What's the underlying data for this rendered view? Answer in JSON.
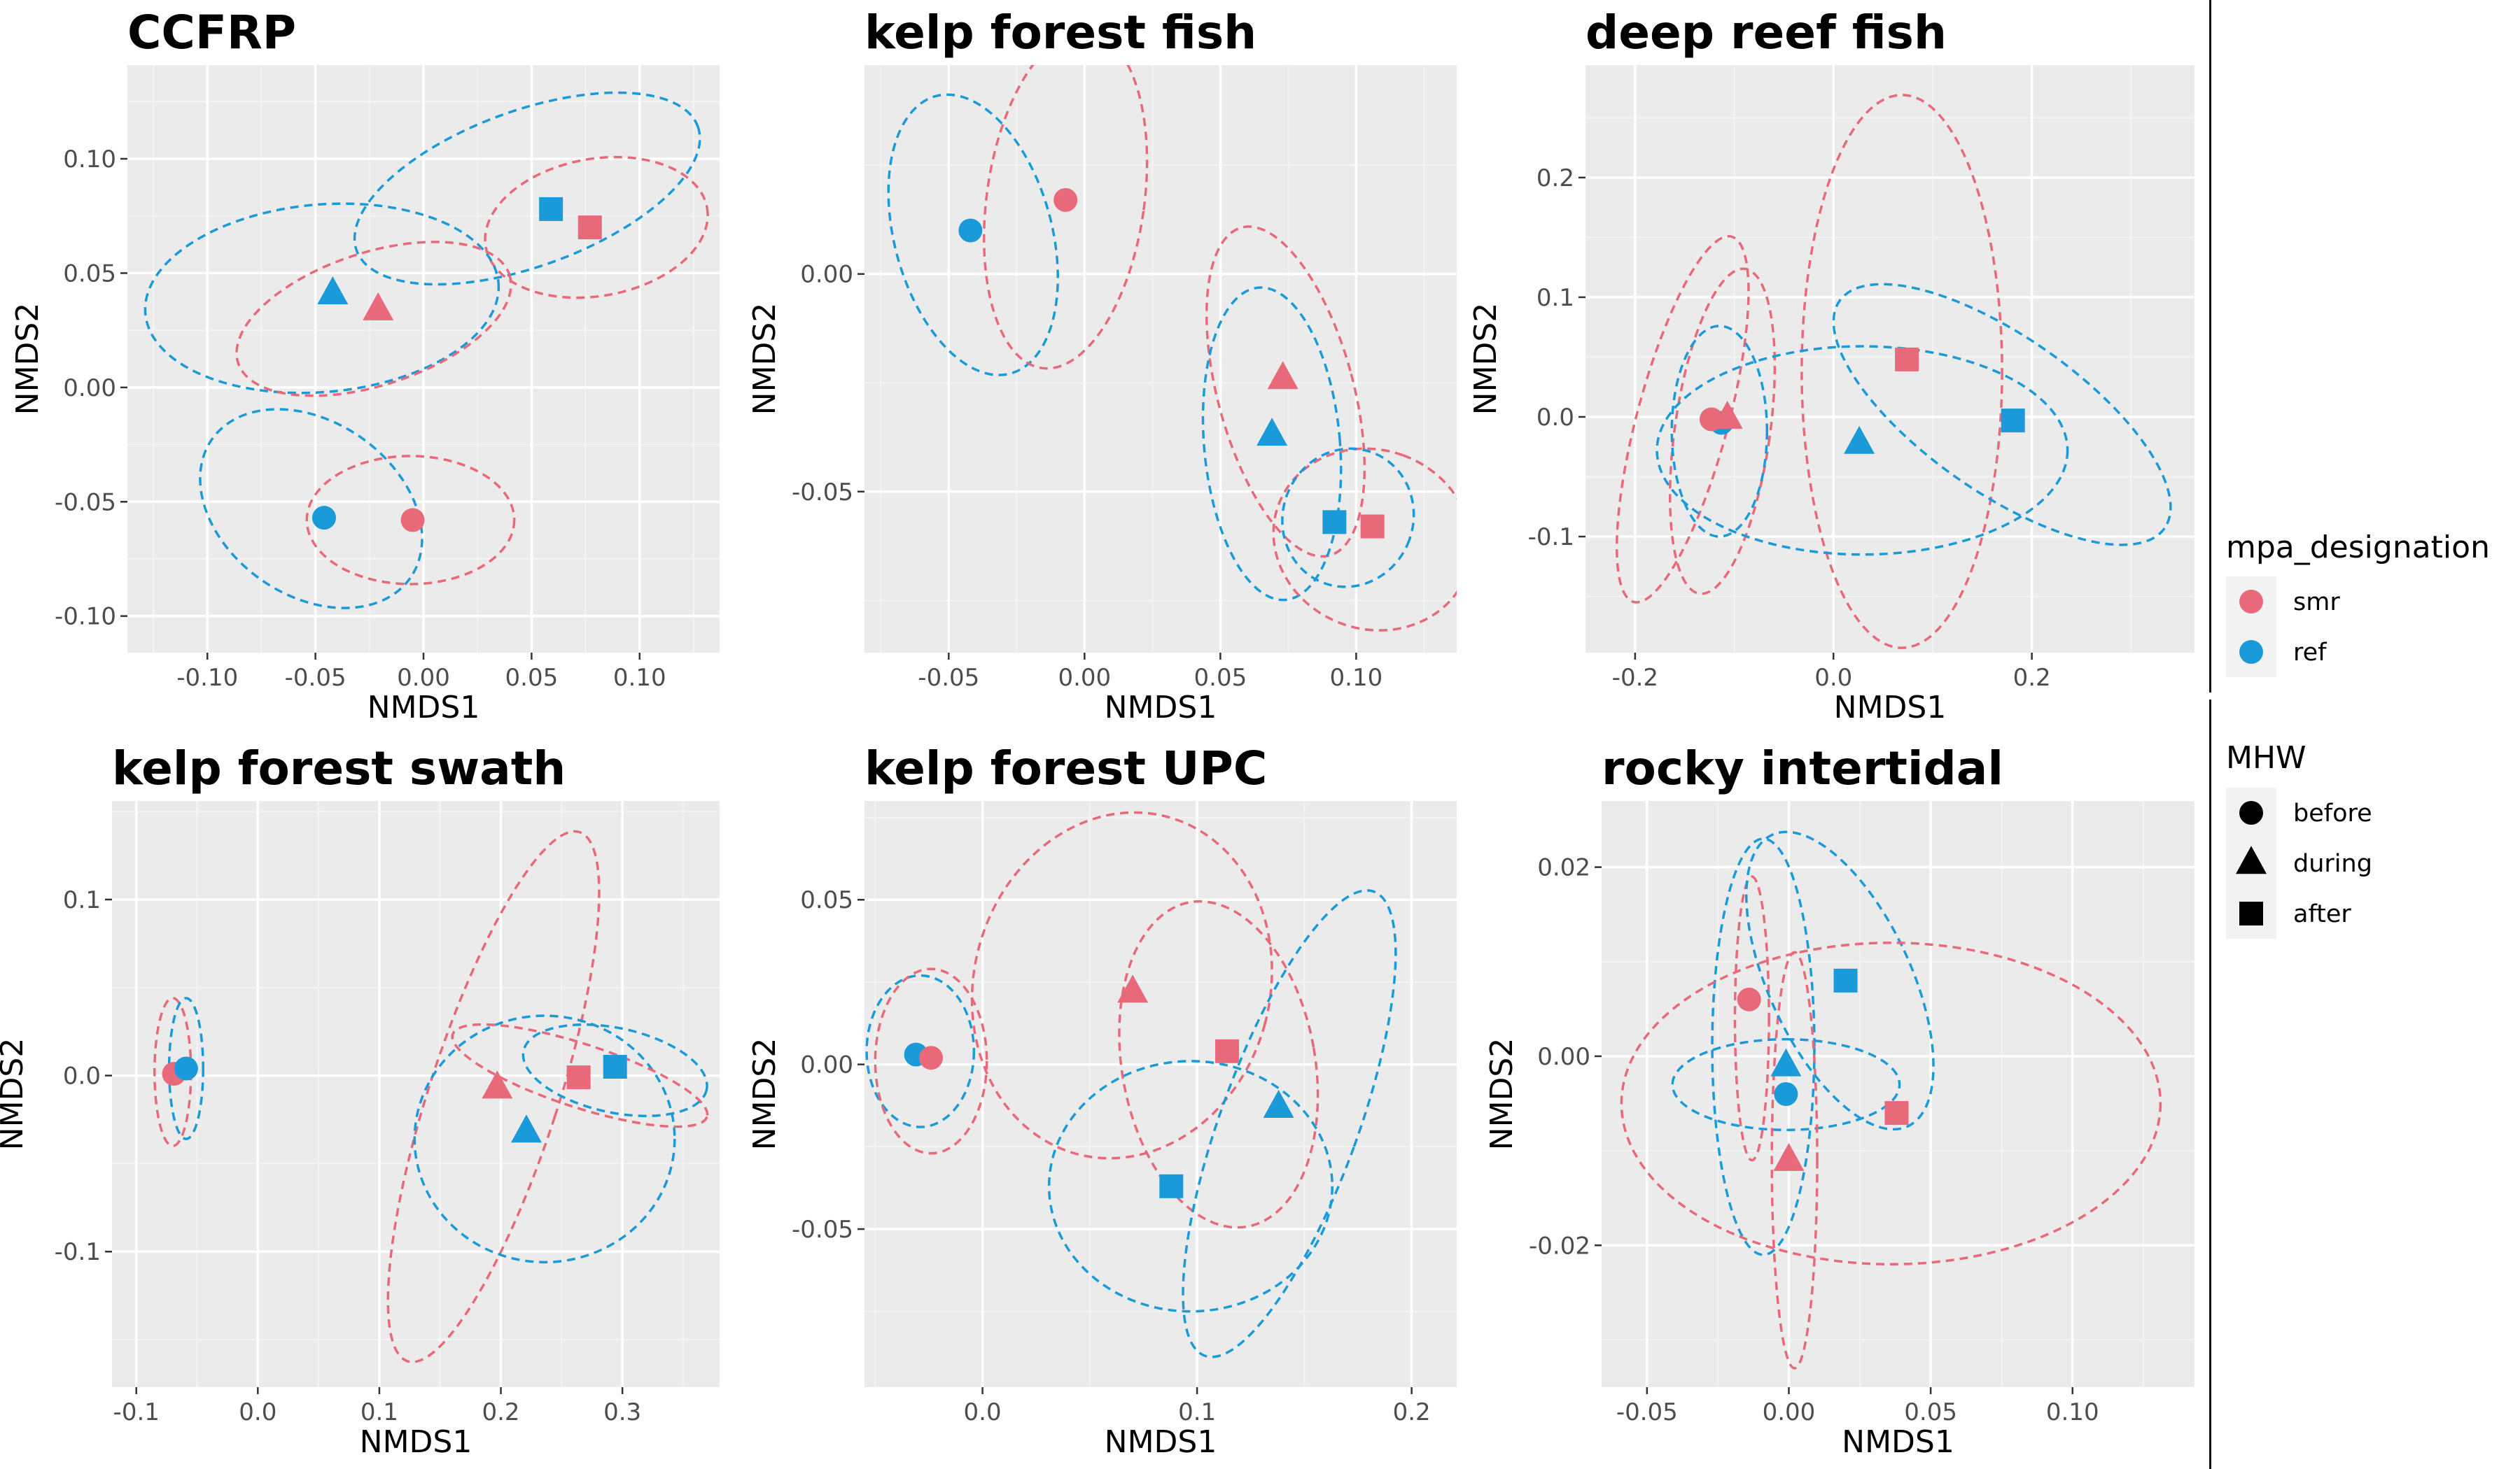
{
  "colors": {
    "smr": "#E8697A",
    "ref": "#1A9AD8",
    "panel_bg": "#EBEBEB",
    "grid_major": "#FFFFFF",
    "grid_minor": "#F4F4F4"
  },
  "legend": {
    "mpa": {
      "title": "mpa_designation",
      "items": [
        {
          "label": "smr",
          "color": "#E8697A"
        },
        {
          "label": "ref",
          "color": "#1A9AD8"
        }
      ]
    },
    "mhw": {
      "title": "MHW",
      "items": [
        {
          "label": "before",
          "shape": "circle"
        },
        {
          "label": "during",
          "shape": "triangle"
        },
        {
          "label": "after",
          "shape": "square"
        }
      ]
    }
  },
  "chart_data": [
    {
      "type": "scatter",
      "title": "CCFRP",
      "xlabel": "NMDS1",
      "ylabel": "NMDS2",
      "xlim": [
        -0.137,
        0.137
      ],
      "ylim": [
        -0.116,
        0.141
      ],
      "xticks": [
        {
          "v": -0.1,
          "label": "-0.10"
        },
        {
          "v": -0.05,
          "label": "-0.05"
        },
        {
          "v": 0,
          "label": "0.00"
        },
        {
          "v": 0.05,
          "label": "0.05"
        },
        {
          "v": 0.1,
          "label": "0.10"
        }
      ],
      "yticks": [
        {
          "v": -0.1,
          "label": "-0.10"
        },
        {
          "v": -0.05,
          "label": "-0.05"
        },
        {
          "v": 0,
          "label": "0.00"
        },
        {
          "v": 0.05,
          "label": "0.05"
        },
        {
          "v": 0.1,
          "label": "0.10"
        }
      ],
      "points": [
        {
          "group": "ref",
          "mhw": "before",
          "x": -0.046,
          "y": -0.057
        },
        {
          "group": "smr",
          "mhw": "before",
          "x": -0.005,
          "y": -0.058
        },
        {
          "group": "ref",
          "mhw": "during",
          "x": -0.042,
          "y": 0.041
        },
        {
          "group": "smr",
          "mhw": "during",
          "x": -0.021,
          "y": 0.034
        },
        {
          "group": "ref",
          "mhw": "after",
          "x": 0.059,
          "y": 0.078
        },
        {
          "group": "smr",
          "mhw": "after",
          "x": 0.077,
          "y": 0.07
        }
      ],
      "ellipses": [
        {
          "group": "ref",
          "mhw": "after",
          "cx": 0.048,
          "cy": 0.087,
          "rx": 0.084,
          "ry": 0.034,
          "angle": 20
        },
        {
          "group": "smr",
          "mhw": "after",
          "cx": 0.08,
          "cy": 0.07,
          "rx": 0.052,
          "ry": 0.03,
          "angle": 10
        },
        {
          "group": "ref",
          "mhw": "during",
          "cx": -0.047,
          "cy": 0.039,
          "rx": 0.082,
          "ry": 0.041,
          "angle": 5
        },
        {
          "group": "smr",
          "mhw": "during",
          "cx": -0.023,
          "cy": 0.03,
          "rx": 0.066,
          "ry": 0.029,
          "angle": 18
        },
        {
          "group": "ref",
          "mhw": "before",
          "cx": -0.052,
          "cy": -0.053,
          "rx": 0.056,
          "ry": 0.038,
          "angle": -35
        },
        {
          "group": "smr",
          "mhw": "before",
          "cx": -0.006,
          "cy": -0.058,
          "rx": 0.048,
          "ry": 0.028,
          "angle": 0
        }
      ]
    },
    {
      "type": "scatter",
      "title": "kelp forest fish",
      "xlabel": "NMDS1",
      "ylabel": "NMDS2",
      "xlim": [
        -0.081,
        0.137
      ],
      "ylim": [
        -0.087,
        0.048
      ],
      "xticks": [
        {
          "v": -0.05,
          "label": "-0.05"
        },
        {
          "v": 0,
          "label": "0.00"
        },
        {
          "v": 0.05,
          "label": "0.05"
        },
        {
          "v": 0.1,
          "label": "0.10"
        }
      ],
      "yticks": [
        {
          "v": -0.05,
          "label": "-0.05"
        },
        {
          "v": 0,
          "label": "0.00"
        }
      ],
      "points": [
        {
          "group": "ref",
          "mhw": "before",
          "x": -0.042,
          "y": 0.01
        },
        {
          "group": "smr",
          "mhw": "before",
          "x": -0.007,
          "y": 0.017
        },
        {
          "group": "ref",
          "mhw": "during",
          "x": 0.069,
          "y": -0.037
        },
        {
          "group": "smr",
          "mhw": "during",
          "x": 0.073,
          "y": -0.024
        },
        {
          "group": "ref",
          "mhw": "after",
          "x": 0.092,
          "y": -0.057
        },
        {
          "group": "smr",
          "mhw": "after",
          "x": 0.106,
          "y": -0.058
        }
      ],
      "ellipses": [
        {
          "group": "ref",
          "mhw": "before",
          "cx": -0.041,
          "cy": 0.009,
          "rx": 0.029,
          "ry": 0.033,
          "angle": 15
        },
        {
          "group": "smr",
          "mhw": "before",
          "cx": -0.007,
          "cy": 0.017,
          "rx": 0.029,
          "ry": 0.039,
          "angle": -8
        },
        {
          "group": "smr",
          "mhw": "during",
          "cx": 0.074,
          "cy": -0.027,
          "rx": 0.025,
          "ry": 0.039,
          "angle": 15
        },
        {
          "group": "ref",
          "mhw": "during",
          "cx": 0.069,
          "cy": -0.039,
          "rx": 0.025,
          "ry": 0.036,
          "angle": 5
        },
        {
          "group": "smr",
          "mhw": "after",
          "cx": 0.106,
          "cy": -0.061,
          "rx": 0.033,
          "ry": 0.023,
          "angle": 70
        },
        {
          "group": "ref",
          "mhw": "after",
          "cx": 0.097,
          "cy": -0.056,
          "rx": 0.024,
          "ry": 0.016,
          "angle": -20
        }
      ]
    },
    {
      "type": "scatter",
      "title": "deep reef fish",
      "xlabel": "NMDS1",
      "ylabel": "NMDS2",
      "xlim": [
        -0.25,
        0.364
      ],
      "ylim": [
        -0.197,
        0.294
      ],
      "xticks": [
        {
          "v": -0.2,
          "label": "-0.2"
        },
        {
          "v": 0,
          "label": "0.0"
        },
        {
          "v": 0.2,
          "label": "0.2"
        }
      ],
      "yticks": [
        {
          "v": -0.1,
          "label": "-0.1"
        },
        {
          "v": 0,
          "label": "0.0"
        },
        {
          "v": 0.1,
          "label": "0.1"
        },
        {
          "v": 0.2,
          "label": "0.2"
        }
      ],
      "points": [
        {
          "group": "ref",
          "mhw": "before",
          "x": -0.113,
          "y": -0.005
        },
        {
          "group": "smr",
          "mhw": "before",
          "x": -0.123,
          "y": -0.002
        },
        {
          "group": "smr",
          "mhw": "during",
          "x": -0.107,
          "y": -0.001
        },
        {
          "group": "ref",
          "mhw": "during",
          "x": 0.026,
          "y": -0.022
        },
        {
          "group": "smr",
          "mhw": "after",
          "x": 0.074,
          "y": 0.048
        },
        {
          "group": "ref",
          "mhw": "after",
          "x": 0.181,
          "y": -0.003
        }
      ],
      "ellipses": [
        {
          "group": "smr",
          "mhw": "before",
          "cx": -0.152,
          "cy": -0.002,
          "rx": 0.046,
          "ry": 0.158,
          "angle": -15
        },
        {
          "group": "smr",
          "mhw": "during",
          "cx": -0.112,
          "cy": -0.012,
          "rx": 0.048,
          "ry": 0.137,
          "angle": -8
        },
        {
          "group": "ref",
          "mhw": "before",
          "cx": -0.115,
          "cy": -0.012,
          "rx": 0.048,
          "ry": 0.088,
          "angle": 0
        },
        {
          "group": "smr",
          "mhw": "after",
          "cx": 0.069,
          "cy": 0.038,
          "rx": 0.101,
          "ry": 0.231,
          "angle": 0
        },
        {
          "group": "ref",
          "mhw": "during",
          "cx": 0.029,
          "cy": -0.028,
          "rx": 0.207,
          "ry": 0.087,
          "angle": 0
        },
        {
          "group": "ref",
          "mhw": "after",
          "cx": 0.17,
          "cy": 0.002,
          "rx": 0.2,
          "ry": 0.065,
          "angle": -35
        }
      ]
    },
    {
      "type": "scatter",
      "title": "kelp forest swath",
      "xlabel": "NMDS1",
      "ylabel": "NMDS2",
      "xlim": [
        -0.12,
        0.38
      ],
      "ylim": [
        -0.177,
        0.156
      ],
      "xticks": [
        {
          "v": -0.1,
          "label": "-0.1"
        },
        {
          "v": 0,
          "label": "0.0"
        },
        {
          "v": 0.1,
          "label": "0.1"
        },
        {
          "v": 0.2,
          "label": "0.2"
        },
        {
          "v": 0.3,
          "label": "0.3"
        }
      ],
      "yticks": [
        {
          "v": -0.1,
          "label": "-0.1"
        },
        {
          "v": 0,
          "label": "0.0"
        },
        {
          "v": 0.1,
          "label": "0.1"
        }
      ],
      "points": [
        {
          "group": "smr",
          "mhw": "before",
          "x": -0.069,
          "y": 0.001
        },
        {
          "group": "ref",
          "mhw": "before",
          "x": -0.059,
          "y": 0.004
        },
        {
          "group": "smr",
          "mhw": "during",
          "x": 0.197,
          "y": -0.007
        },
        {
          "group": "ref",
          "mhw": "during",
          "x": 0.221,
          "y": -0.032
        },
        {
          "group": "smr",
          "mhw": "after",
          "x": 0.264,
          "y": -0.001
        },
        {
          "group": "ref",
          "mhw": "after",
          "x": 0.294,
          "y": 0.005
        }
      ],
      "ellipses": [
        {
          "group": "smr",
          "mhw": "before",
          "cx": -0.07,
          "cy": 0.002,
          "rx": 0.015,
          "ry": 0.042,
          "angle": 0
        },
        {
          "group": "ref",
          "mhw": "before",
          "cx": -0.059,
          "cy": 0.004,
          "rx": 0.014,
          "ry": 0.04,
          "angle": 0
        },
        {
          "group": "smr",
          "mhw": "during",
          "cx": 0.194,
          "cy": -0.012,
          "rx": 0.053,
          "ry": 0.158,
          "angle": -18
        },
        {
          "group": "ref",
          "mhw": "during",
          "cx": 0.236,
          "cy": -0.036,
          "rx": 0.107,
          "ry": 0.07,
          "angle": 0
        },
        {
          "group": "smr",
          "mhw": "after",
          "cx": 0.265,
          "cy": 0.0,
          "rx": 0.11,
          "ry": 0.018,
          "angle": -18
        },
        {
          "group": "ref",
          "mhw": "after",
          "cx": 0.294,
          "cy": 0.003,
          "rx": 0.077,
          "ry": 0.024,
          "angle": -12
        }
      ]
    },
    {
      "type": "scatter",
      "title": "kelp forest UPC",
      "xlabel": "NMDS1",
      "ylabel": "NMDS2",
      "xlim": [
        -0.055,
        0.221
      ],
      "ylim": [
        -0.098,
        0.08
      ],
      "xticks": [
        {
          "v": 0,
          "label": "0.0"
        },
        {
          "v": 0.1,
          "label": "0.1"
        },
        {
          "v": 0.2,
          "label": "0.2"
        }
      ],
      "yticks": [
        {
          "v": -0.05,
          "label": "-0.05"
        },
        {
          "v": 0,
          "label": "0.00"
        },
        {
          "v": 0.05,
          "label": "0.05"
        }
      ],
      "points": [
        {
          "group": "ref",
          "mhw": "before",
          "x": -0.031,
          "y": 0.003
        },
        {
          "group": "smr",
          "mhw": "before",
          "x": -0.024,
          "y": 0.002
        },
        {
          "group": "smr",
          "mhw": "during",
          "x": 0.07,
          "y": 0.022
        },
        {
          "group": "smr",
          "mhw": "after",
          "x": 0.114,
          "y": 0.004
        },
        {
          "group": "ref",
          "mhw": "during",
          "x": 0.138,
          "y": -0.013
        },
        {
          "group": "ref",
          "mhw": "after",
          "x": 0.088,
          "y": -0.037
        }
      ],
      "ellipses": [
        {
          "group": "ref",
          "mhw": "before",
          "cx": -0.029,
          "cy": 0.004,
          "rx": 0.025,
          "ry": 0.023,
          "angle": 0
        },
        {
          "group": "smr",
          "mhw": "before",
          "cx": -0.024,
          "cy": 0.001,
          "rx": 0.026,
          "ry": 0.028,
          "angle": 0
        },
        {
          "group": "smr",
          "mhw": "during",
          "cx": 0.065,
          "cy": 0.024,
          "rx": 0.069,
          "ry": 0.053,
          "angle": -15
        },
        {
          "group": "smr",
          "mhw": "after",
          "cx": 0.11,
          "cy": 0.0,
          "rx": 0.045,
          "ry": 0.05,
          "angle": 10
        },
        {
          "group": "ref",
          "mhw": "during",
          "cx": 0.143,
          "cy": -0.018,
          "rx": 0.032,
          "ry": 0.075,
          "angle": -20
        },
        {
          "group": "ref",
          "mhw": "after",
          "cx": 0.097,
          "cy": -0.037,
          "rx": 0.066,
          "ry": 0.038,
          "angle": 0
        }
      ]
    },
    {
      "type": "scatter",
      "title": "rocky intertidal",
      "xlabel": "NMDS1",
      "ylabel": "NMDS2",
      "xlim": [
        -0.066,
        0.143
      ],
      "ylim": [
        -0.035,
        0.027
      ],
      "xticks": [
        {
          "v": -0.05,
          "label": "-0.05"
        },
        {
          "v": 0,
          "label": "0.00"
        },
        {
          "v": 0.05,
          "label": "0.05"
        },
        {
          "v": 0.1,
          "label": "0.10"
        }
      ],
      "yticks": [
        {
          "v": -0.02,
          "label": "-0.02"
        },
        {
          "v": 0,
          "label": "0.00"
        },
        {
          "v": 0.02,
          "label": "0.02"
        }
      ],
      "points": [
        {
          "group": "smr",
          "mhw": "before",
          "x": -0.014,
          "y": 0.006
        },
        {
          "group": "ref",
          "mhw": "after",
          "x": 0.02,
          "y": 0.008
        },
        {
          "group": "ref",
          "mhw": "during",
          "x": -0.001,
          "y": -0.001
        },
        {
          "group": "ref",
          "mhw": "before",
          "x": -0.001,
          "y": -0.004
        },
        {
          "group": "smr",
          "mhw": "after",
          "x": 0.038,
          "y": -0.006
        },
        {
          "group": "smr",
          "mhw": "during",
          "x": 0.0,
          "y": -0.011
        }
      ],
      "ellipses": [
        {
          "group": "smr",
          "mhw": "before",
          "cx": -0.013,
          "cy": 0.004,
          "rx": 0.006,
          "ry": 0.015,
          "angle": 0
        },
        {
          "group": "ref",
          "mhw": "before",
          "cx": -0.009,
          "cy": 0.001,
          "rx": 0.018,
          "ry": 0.022,
          "angle": 0
        },
        {
          "group": "ref",
          "mhw": "during",
          "cx": -0.001,
          "cy": -0.003,
          "rx": 0.016,
          "ry": 0.012,
          "angle": 90
        },
        {
          "group": "smr",
          "mhw": "during",
          "cx": 0.002,
          "cy": -0.011,
          "rx": 0.008,
          "ry": 0.022,
          "angle": 0
        },
        {
          "group": "ref",
          "mhw": "after",
          "cx": 0.018,
          "cy": 0.008,
          "rx": 0.025,
          "ry": 0.017,
          "angle": 25
        },
        {
          "group": "smr",
          "mhw": "after",
          "cx": 0.036,
          "cy": -0.005,
          "rx": 0.095,
          "ry": 0.017,
          "angle": 0
        }
      ]
    }
  ]
}
